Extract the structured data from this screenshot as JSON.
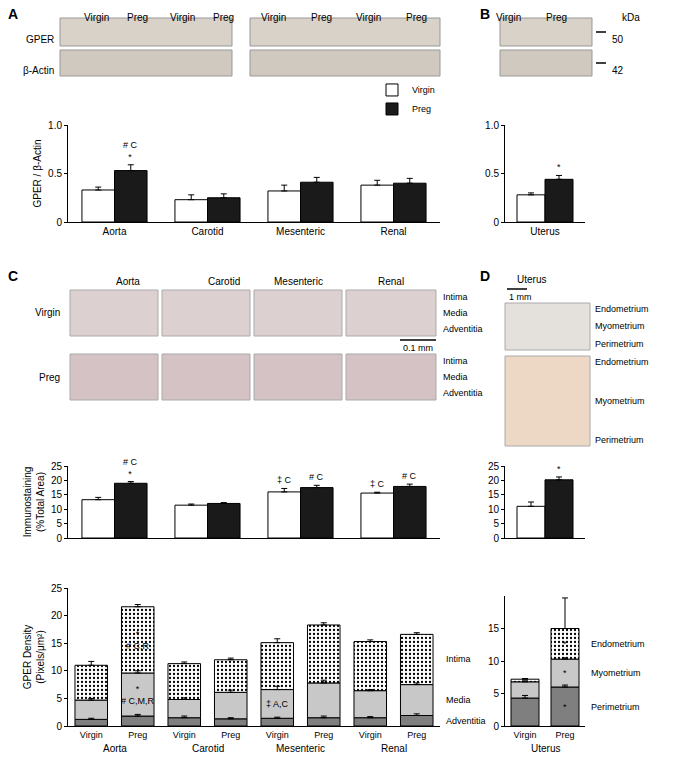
{
  "panel_labels": [
    "A",
    "B",
    "C",
    "D"
  ],
  "blots": [
    {
      "lanes": [
        "Virgin",
        "Preg",
        "Virgin",
        "Preg",
        "Virgin",
        "Preg",
        "Virgin",
        "Preg"
      ],
      "rows": [
        "GPER",
        "β-Actin"
      ]
    },
    {
      "lanes": [
        "Virgin",
        "Preg"
      ],
      "marker_title": "kDa",
      "markers": [
        50,
        42
      ]
    }
  ],
  "micrographs": [
    {
      "columns": [
        "Aorta",
        "Carotid",
        "Mesenteric",
        "Renal"
      ],
      "rows": [
        "Virgin",
        "Preg"
      ],
      "layers": [
        "Intima",
        "Media",
        "Adventitia"
      ],
      "scale": "0.1 mm"
    },
    {
      "title": "Uterus",
      "layers": [
        "Endometrium",
        "Myometrium",
        "Perimetrium"
      ],
      "scale": "1 mm"
    }
  ],
  "chart_data": [
    {
      "type": "bar",
      "categories": [
        "Aorta",
        "Carotid",
        "Mesenteric",
        "Renal"
      ],
      "ylabel": "GPER / β-Actin",
      "ylim": [
        0,
        1
      ],
      "yticks": [
        0,
        0.5,
        {
          "value": 1,
          "label": "1.0"
        }
      ],
      "legend": "top right",
      "series": [
        {
          "name": "Virgin",
          "color": "#ffffff",
          "values": [
            0.33,
            0.23,
            0.32,
            0.38
          ],
          "errors": [
            0.03,
            0.05,
            0.06,
            0.05
          ]
        },
        {
          "name": "Preg",
          "color": "#1a1a1a",
          "values": [
            0.53,
            0.25,
            0.41,
            0.4
          ],
          "errors": [
            0.06,
            0.04,
            0.05,
            0.05
          ],
          "annotations": [
            [
              "# C",
              "*"
            ],
            null,
            null,
            null
          ]
        }
      ]
    },
    {
      "type": "bar",
      "categories": [
        "Uterus"
      ],
      "ylim": [
        0,
        1
      ],
      "yticks": [
        0,
        0.5,
        {
          "value": 1,
          "label": "1.0"
        }
      ],
      "series": [
        {
          "color": "#ffffff",
          "values": [
            0.28
          ],
          "errors": [
            0.02
          ]
        },
        {
          "color": "#1a1a1a",
          "values": [
            0.44
          ],
          "errors": [
            0.04
          ],
          "annotations": [
            [
              "*"
            ]
          ]
        }
      ]
    },
    {
      "type": "bar",
      "categories": [
        null,
        null,
        null,
        null
      ],
      "tick_labels": "y",
      "ylabel": "Immunostaining\n(%Total Area)",
      "ylim": [
        0,
        25
      ],
      "yticks": [
        0,
        5,
        10,
        15,
        20,
        25
      ],
      "series": [
        {
          "color": "#ffffff",
          "values": [
            13.3,
            11.4,
            16.0,
            15.6
          ],
          "errors": [
            0.8,
            0.4,
            1.2,
            0.3
          ],
          "annotations": [
            null,
            null,
            [
              "‡ C"
            ],
            [
              "‡ C"
            ]
          ]
        },
        {
          "color": "#1a1a1a",
          "values": [
            19.0,
            12.0,
            17.5,
            17.9
          ],
          "errors": [
            0.6,
            0.3,
            0.8,
            0.8
          ],
          "annotations": [
            [
              "# C",
              "*"
            ],
            null,
            [
              "# C"
            ],
            [
              "# C"
            ]
          ]
        }
      ]
    },
    {
      "type": "bar",
      "categories": [
        null
      ],
      "tick_labels": "y",
      "ylim": [
        0,
        25
      ],
      "yticks": [
        0,
        5,
        10,
        15,
        20,
        25
      ],
      "series": [
        {
          "color": "#ffffff",
          "values": [
            11.0
          ],
          "errors": [
            1.5
          ]
        },
        {
          "color": "#1a1a1a",
          "values": [
            20.2
          ],
          "errors": [
            1.0
          ],
          "annotations": [
            [
              "*"
            ]
          ]
        }
      ]
    },
    {
      "type": "bar",
      "stacked": true,
      "categories": [
        "Virgin",
        "Preg",
        "Virgin",
        "Preg",
        "Virgin",
        "Preg",
        "Virgin",
        "Preg"
      ],
      "groups": [
        "Aorta",
        "Carotid",
        "Mesenteric",
        "Renal"
      ],
      "ylabel": "GPER Density\n(Pixels/μm²)",
      "ylim": [
        0,
        25
      ],
      "yticks": [
        0,
        5,
        10,
        15,
        20,
        25
      ],
      "series": [
        {
          "name": "Adventitia",
          "color": "#7f7f7f",
          "values": [
            1.2,
            1.8,
            1.5,
            1.3,
            1.4,
            1.5,
            1.5,
            1.9
          ],
          "errors": [
            0.2,
            0.3,
            0.3,
            0.2,
            0.2,
            0.3,
            0.2,
            0.3
          ]
        },
        {
          "name": "Media",
          "color": "#c8c8c8",
          "values": [
            3.5,
            7.8,
            3.3,
            4.8,
            5.2,
            6.3,
            4.9,
            5.6
          ],
          "errors": [
            0.3,
            0.4,
            0.3,
            0.4,
            0.6,
            0.5,
            0.2,
            0.3
          ],
          "annotations": [
            null,
            [
              "*",
              "# C,M,R"
            ],
            null,
            null,
            [
              "‡ A,C"
            ],
            null,
            null,
            null
          ]
        },
        {
          "name": "Intima",
          "color": "#ffffff",
          "marker": "dots",
          "values": [
            6.3,
            12.0,
            6.5,
            5.9,
            8.5,
            10.5,
            8.9,
            9.1
          ],
          "errors": [
            0.7,
            0.4,
            0.3,
            0.3,
            0.7,
            0.4,
            0.3,
            0.3
          ],
          "annotations": [
            null,
            [
              "*",
              "# C,R"
            ],
            null,
            null,
            null,
            null,
            null,
            null
          ]
        }
      ]
    },
    {
      "type": "bar",
      "stacked": true,
      "categories": [
        "Virgin",
        "Preg"
      ],
      "groups": [
        "Uterus"
      ],
      "ylim": [
        0,
        20
      ],
      "yticks": [
        0,
        5,
        10,
        15
      ],
      "series": [
        {
          "name": "Perimetrium",
          "color": "#7f7f7f",
          "values": [
            4.3,
            6.0
          ],
          "errors": [
            0.4,
            0.3
          ],
          "annotations": [
            null,
            [
              "*"
            ]
          ]
        },
        {
          "name": "Myometrium",
          "color": "#c8c8c8",
          "values": [
            2.5,
            4.3
          ],
          "errors": [
            0.15,
            0.2
          ],
          "annotations": [
            null,
            [
              "*"
            ]
          ]
        },
        {
          "name": "Endometrium",
          "color": "#ffffff",
          "marker": "dots",
          "values": [
            0.4,
            4.7
          ],
          "errors": [
            0.1,
            4.7
          ],
          "annotations": [
            null,
            [
              "*"
            ]
          ]
        }
      ]
    }
  ]
}
